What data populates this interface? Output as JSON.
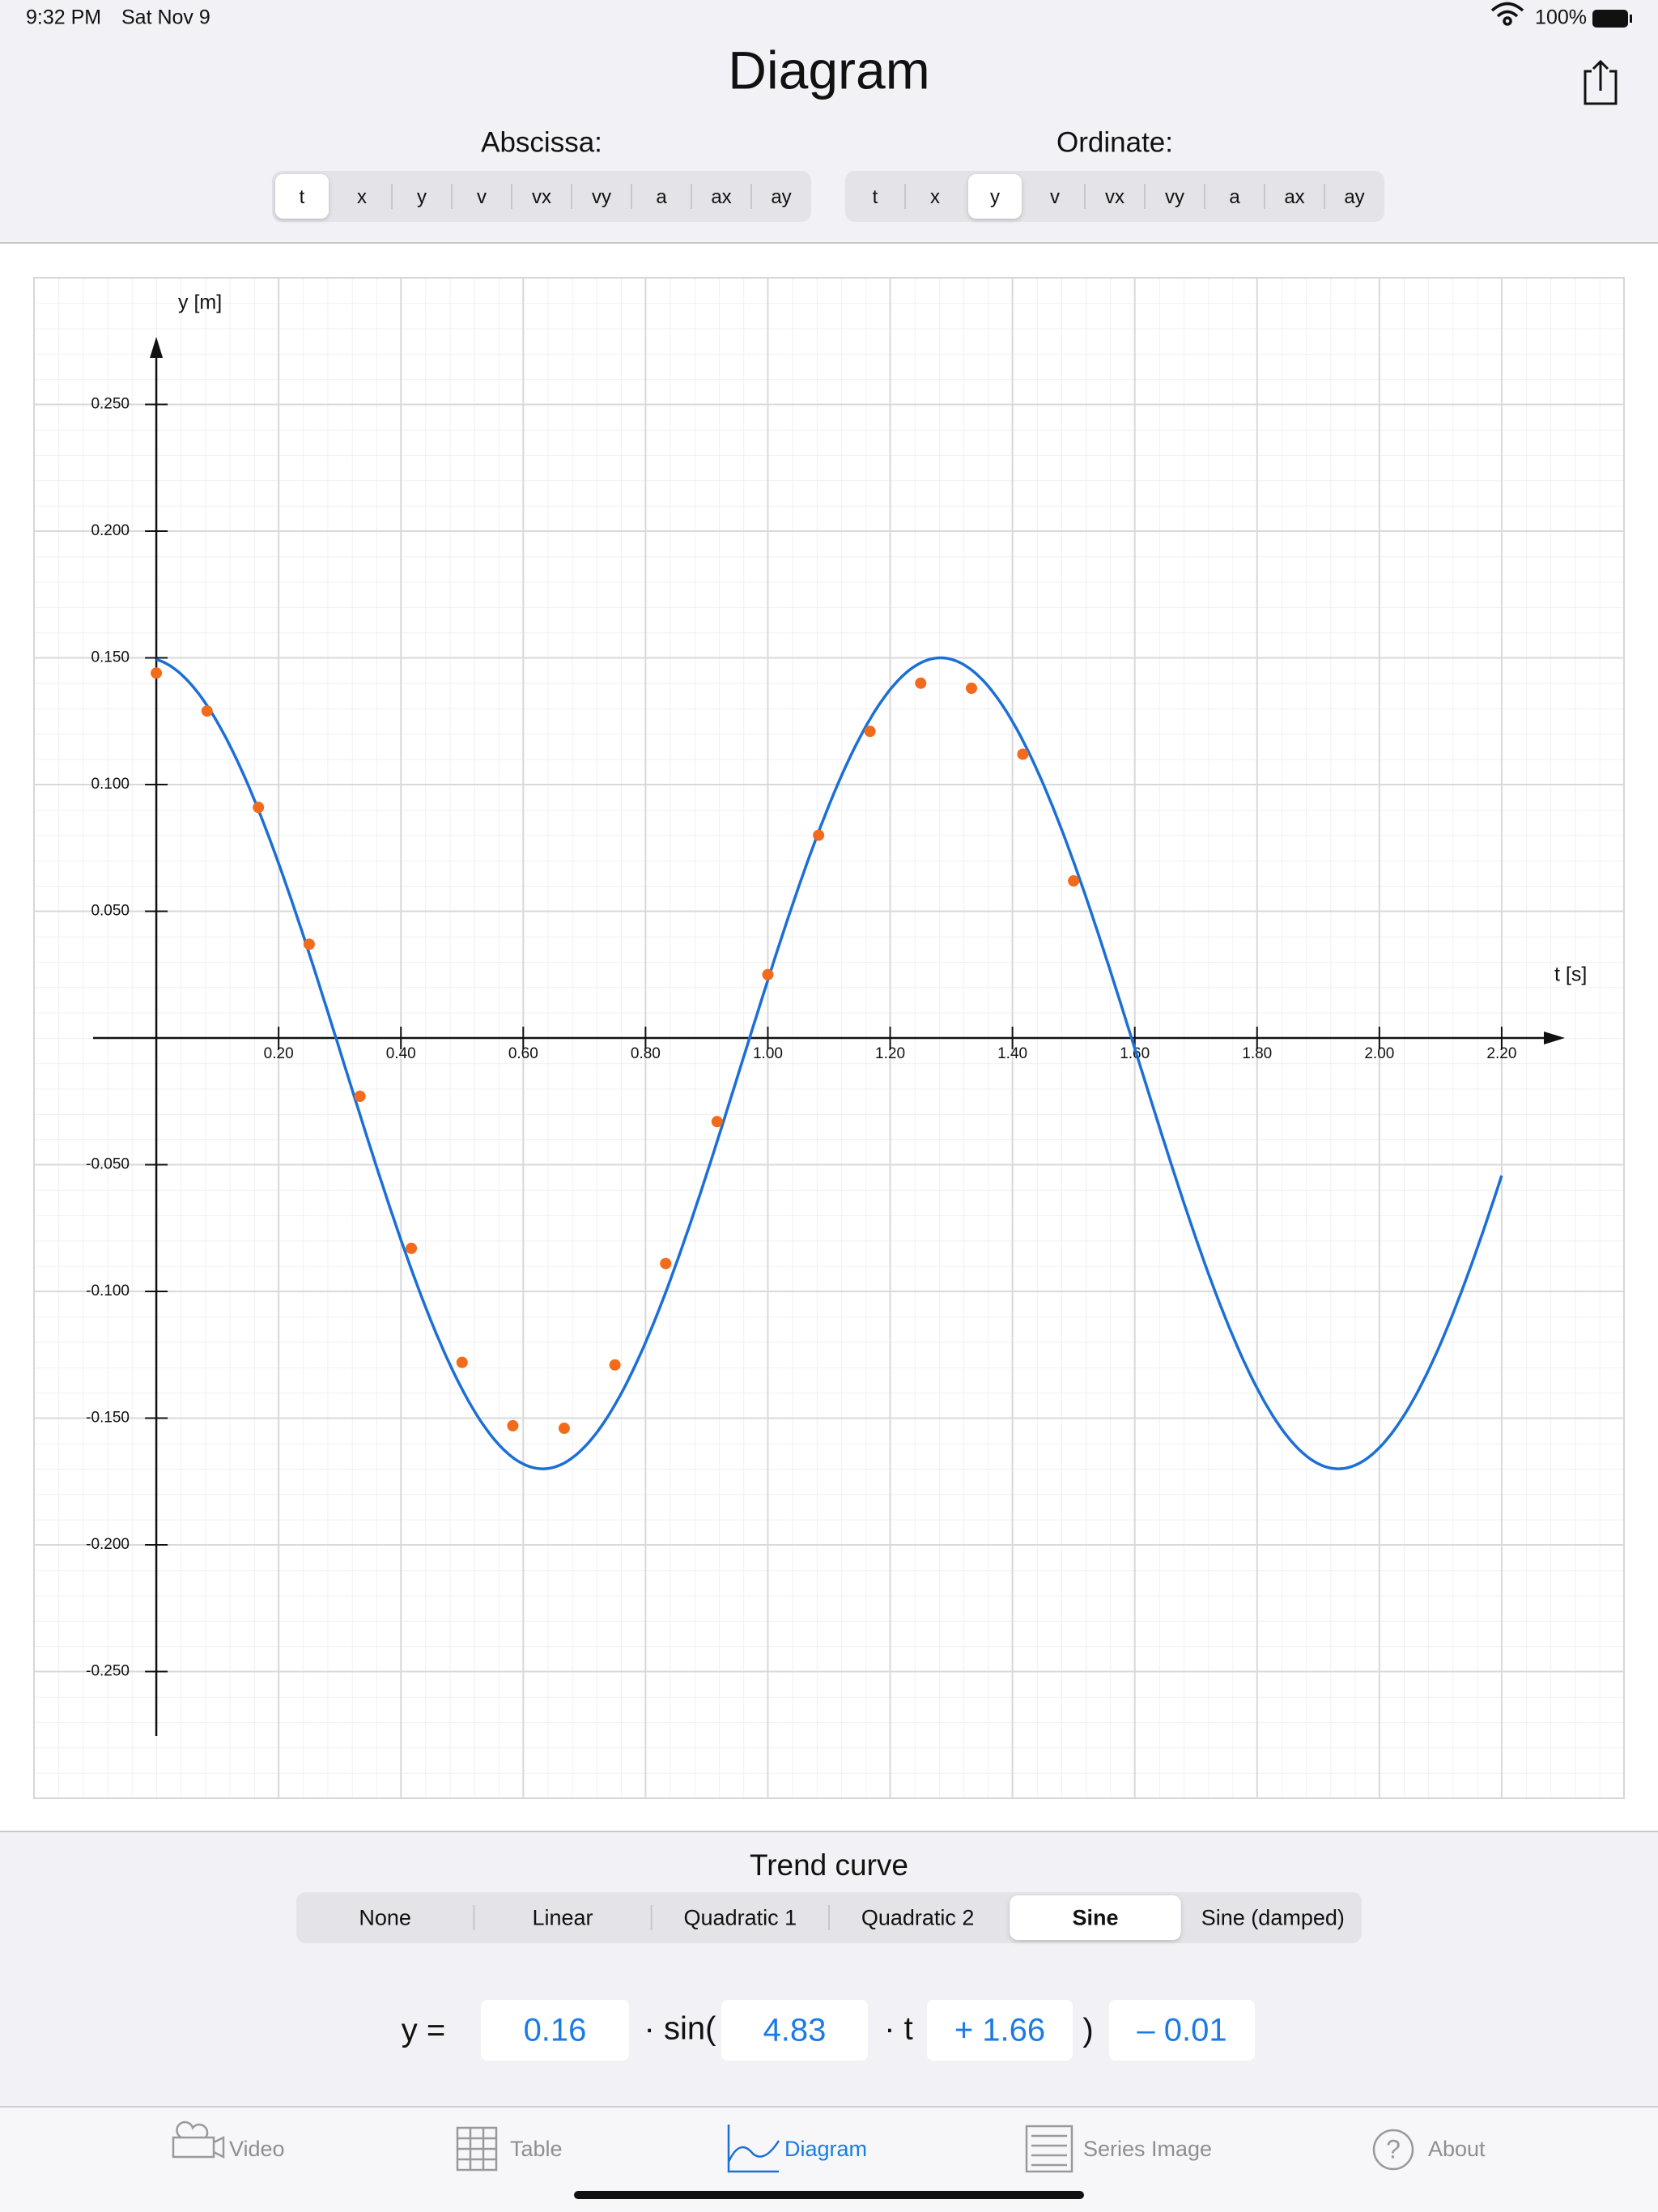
{
  "status_bar": {
    "time": "9:32 PM",
    "date": "Sat Nov 9",
    "battery": "100%"
  },
  "header": {
    "title": "Diagram"
  },
  "abscissa": {
    "label": "Abscissa:",
    "options": [
      "t",
      "x",
      "y",
      "v",
      "vx",
      "vy",
      "a",
      "ax",
      "ay"
    ],
    "selected": "t"
  },
  "ordinate": {
    "label": "Ordinate:",
    "options": [
      "t",
      "x",
      "y",
      "v",
      "vx",
      "vy",
      "a",
      "ax",
      "ay"
    ],
    "selected": "y"
  },
  "chart_data": {
    "type": "scatter",
    "xlabel": "t [s]",
    "ylabel": "y [m]",
    "x": [
      0,
      0.083,
      0.167,
      0.25,
      0.333,
      0.417,
      0.5,
      0.583,
      0.667,
      0.75,
      0.833,
      0.917,
      1.0,
      1.083,
      1.167,
      1.25,
      1.333,
      1.417,
      1.5
    ],
    "values": [
      0.144,
      0.129,
      0.091,
      0.037,
      -0.023,
      -0.083,
      -0.128,
      -0.153,
      -0.154,
      -0.129,
      -0.089,
      -0.033,
      0.025,
      0.08,
      0.121,
      0.14,
      0.138,
      0.112,
      0.062
    ],
    "color": "#f26a1b",
    "trend_color": "#1b6fd6",
    "xlim": [
      -0.2,
      2.4
    ],
    "ylim": [
      -0.3,
      0.3
    ],
    "xticks": [
      {
        "value": 0.2,
        "label": "0.20"
      },
      {
        "value": 0.4,
        "label": "0.40"
      },
      {
        "value": 0.6,
        "label": "0.60"
      },
      {
        "value": 0.8,
        "label": "0.80"
      },
      {
        "value": 1.0,
        "label": "1.00"
      },
      {
        "value": 1.2,
        "label": "1.20"
      },
      {
        "value": 1.4,
        "label": "1.40"
      },
      {
        "value": 1.6,
        "label": "1.60"
      },
      {
        "value": 1.8,
        "label": "1.80"
      },
      {
        "value": 2.0,
        "label": "2.00"
      },
      {
        "value": 2.2,
        "label": "2.20"
      }
    ],
    "yticks": [
      {
        "value": -0.25,
        "label": "-0.250"
      },
      {
        "value": -0.2,
        "label": "-0.200"
      },
      {
        "value": -0.15,
        "label": "-0.150"
      },
      {
        "value": -0.1,
        "label": "-0.100"
      },
      {
        "value": -0.05,
        "label": "-0.050"
      },
      {
        "value": 0.05,
        "label": "0.050"
      },
      {
        "value": 0.1,
        "label": "0.100"
      },
      {
        "value": 0.15,
        "label": "0.150"
      },
      {
        "value": 0.2,
        "label": "0.200"
      },
      {
        "value": 0.25,
        "label": "0.250"
      }
    ],
    "grid": true
  },
  "trend": {
    "title": "Trend curve",
    "options": [
      "None",
      "Linear",
      "Quadratic 1",
      "Quadratic 2",
      "Sine",
      "Sine (damped)"
    ],
    "selected": "Sine"
  },
  "equation": {
    "lhs": "y =",
    "amplitude": 0.16,
    "sin": "· sin(",
    "omega": 4.83,
    "times_t": "· t",
    "phase": {
      "value": 1.66,
      "label": "+ 1.66"
    },
    "close": ")",
    "offset": {
      "value": -0.01,
      "label": "– 0.01"
    }
  },
  "tab_bar": {
    "items": [
      "Video",
      "Table",
      "Diagram",
      "Series Image",
      "About"
    ],
    "selected": "Diagram"
  }
}
